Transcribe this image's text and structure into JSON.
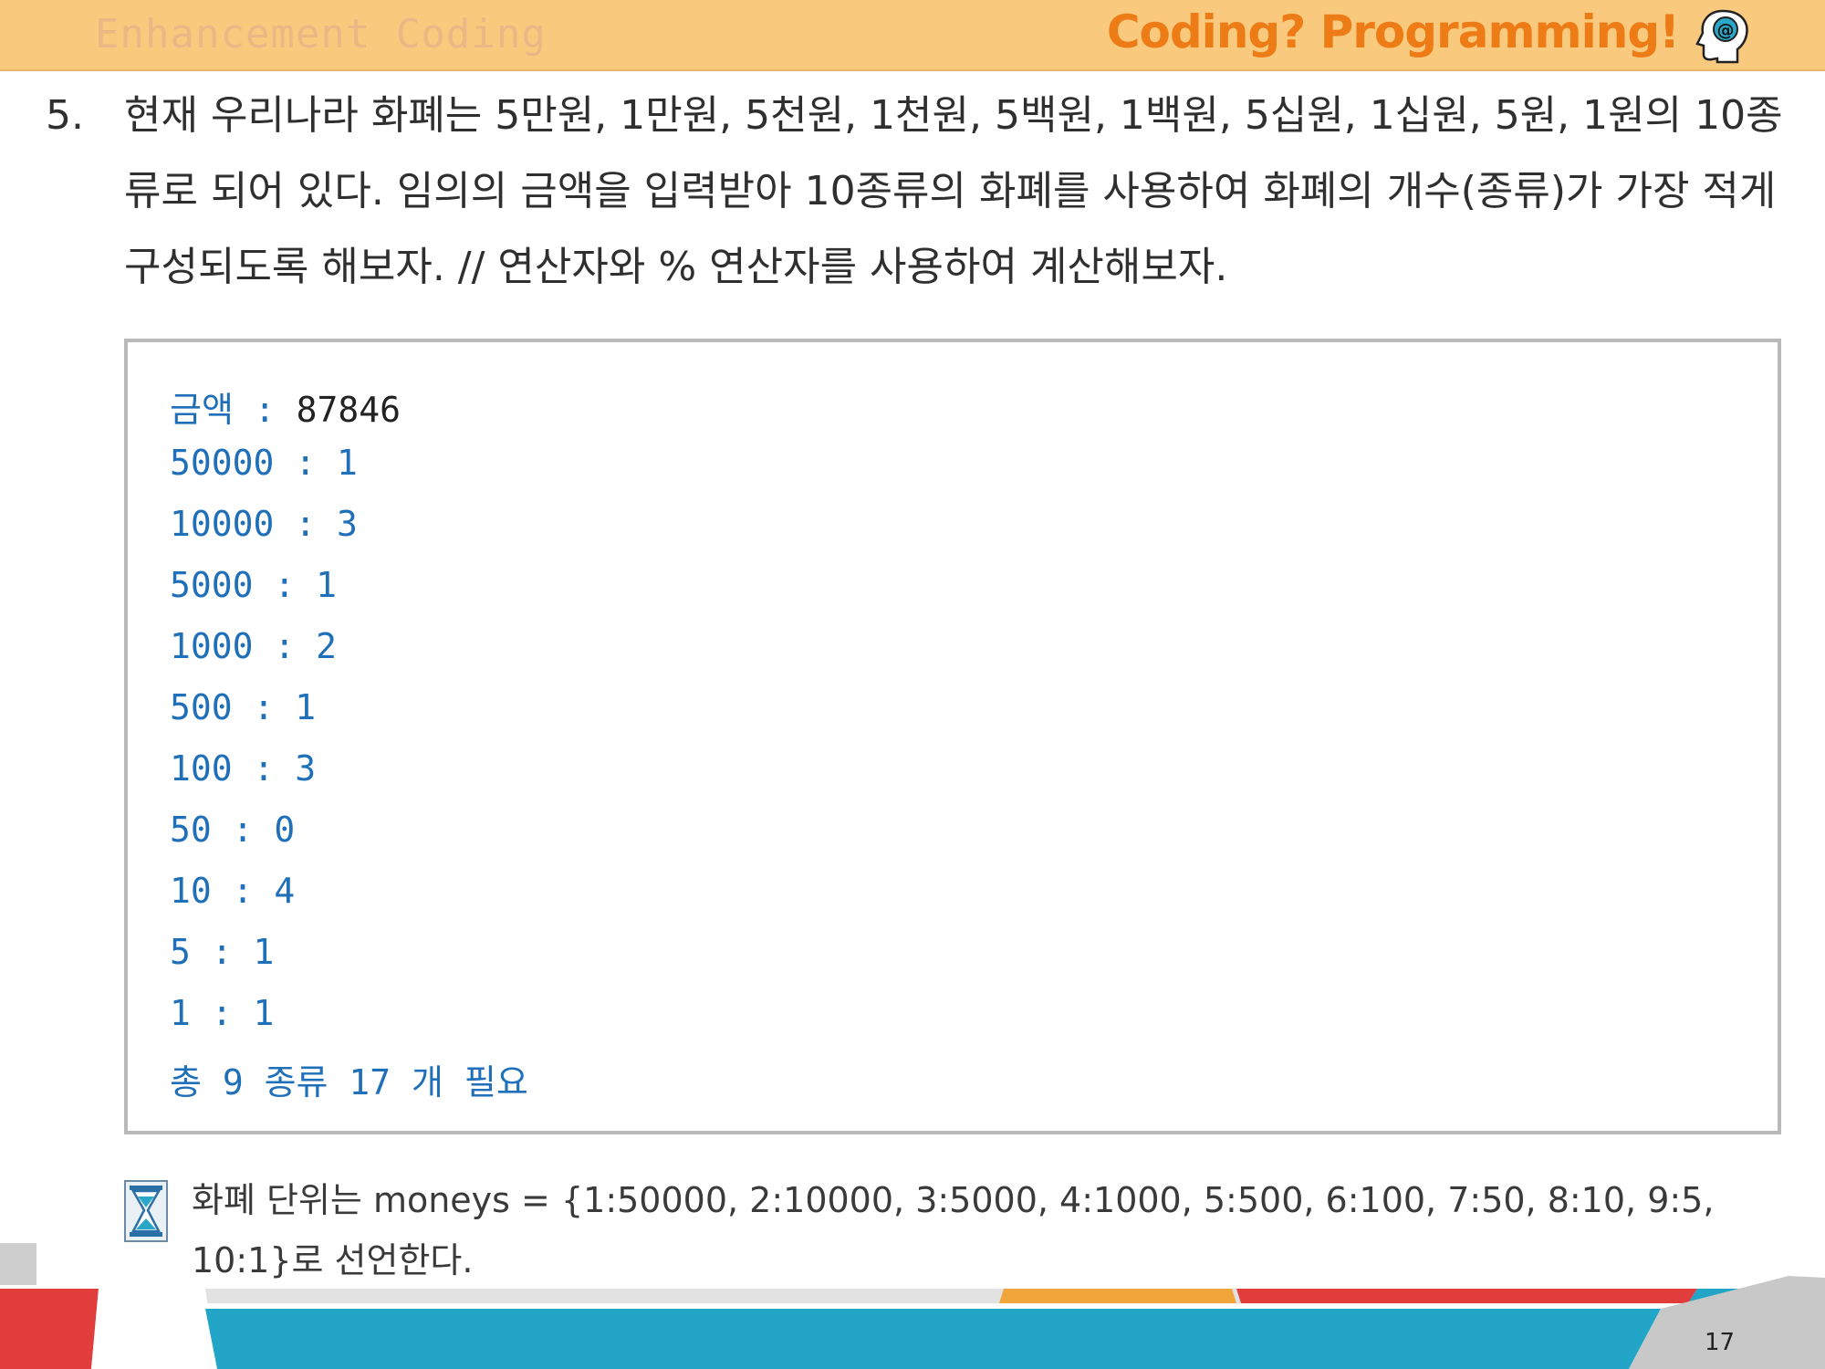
{
  "header": {
    "left_title": "Enhancement Coding",
    "right_title": "Coding? Programming!",
    "icon": "head-at-icon"
  },
  "question": {
    "number": "5.",
    "text": "현재 우리나라 화폐는 5만원, 1만원, 5천원, 1천원, 5백원, 1백원, 5십원, 1십원, 5원, 1원의 10종류로 되어 있다. 임의의 금액을 입력받아 10종류의 화폐를 사용하여 화폐의 개수(종류)가 가장 적게 구성되도록 해보자. // 연산자와 % 연산자를 사용하여 계산해보자."
  },
  "output": {
    "input_label": "금액 : ",
    "input_value": "87846",
    "lines": [
      "50000 : 1",
      "10000 : 3",
      "5000 : 1",
      "1000 : 2",
      "500 : 1",
      "100 : 3",
      "50 : 0",
      "10 : 4",
      "5 : 1",
      "1 : 1",
      "총 9 종류 17 개 필요"
    ]
  },
  "note": {
    "icon": "hourglass-icon",
    "text": "화폐 단위는 moneys = {1:50000, 2:10000, 3:5000, 4:1000, 5:500, 6:100, 7:50, 8:10, 9:5, 10:1}로 선언한다."
  },
  "footer": {
    "page_number": "17"
  },
  "colors": {
    "header_bg": "#f9c97e",
    "header_right_text": "#ee7c16",
    "output_text": "#1f6fb9",
    "footer_teal": "#22a5c6",
    "footer_red": "#e23d3d",
    "footer_orange": "#f0a63a"
  }
}
